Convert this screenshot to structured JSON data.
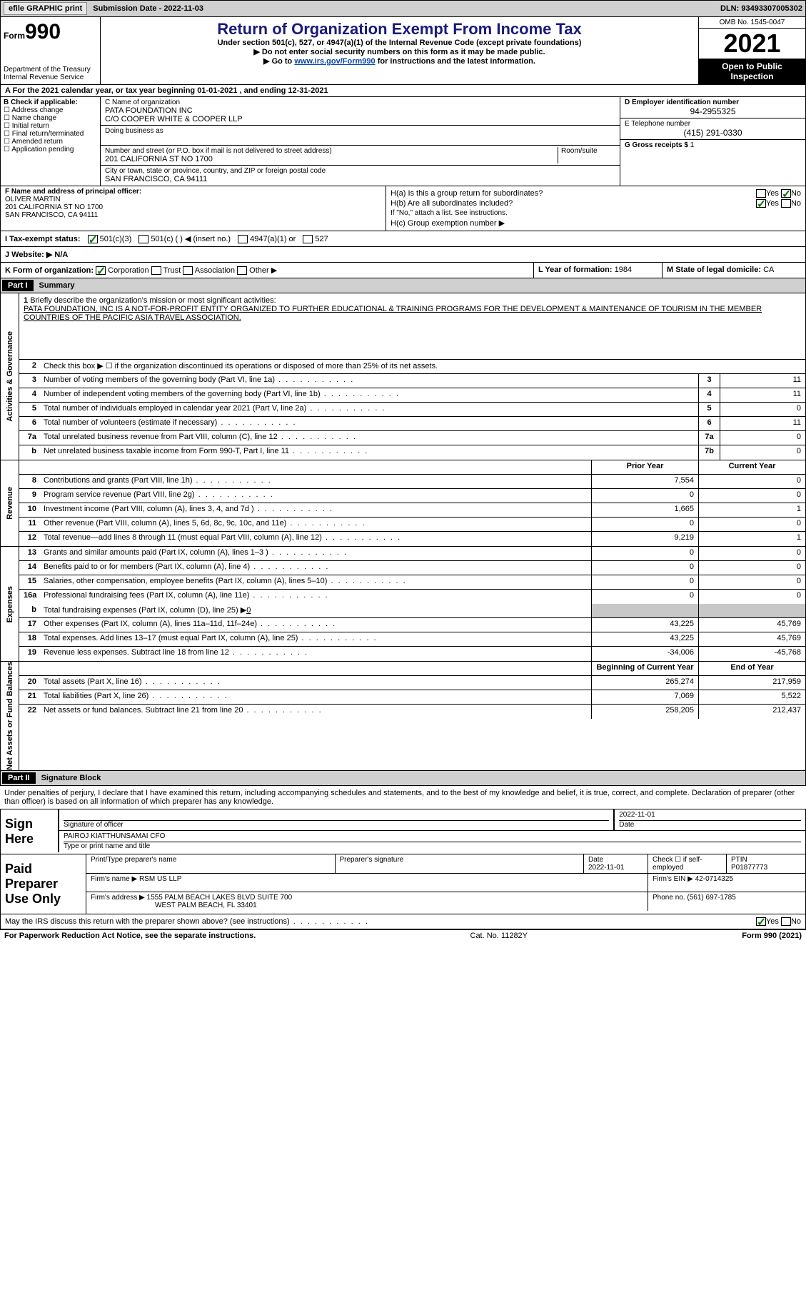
{
  "topbar": {
    "efile_btn": "efile GRAPHIC print",
    "submission_label": "Submission Date - 2022-11-03",
    "dln": "DLN: 93493307005302"
  },
  "header": {
    "form_word": "Form",
    "form_num": "990",
    "dept": "Department of the Treasury",
    "irs": "Internal Revenue Service",
    "title": "Return of Organization Exempt From Income Tax",
    "subtitle1": "Under section 501(c), 527, or 4947(a)(1) of the Internal Revenue Code (except private foundations)",
    "subtitle2": "▶ Do not enter social security numbers on this form as it may be made public.",
    "subtitle3_pre": "▶ Go to ",
    "subtitle3_link": "www.irs.gov/Form990",
    "subtitle3_post": " for instructions and the latest information.",
    "omb": "OMB No. 1545-0047",
    "year": "2021",
    "inspection": "Open to Public Inspection"
  },
  "line_a": "A For the 2021 calendar year, or tax year beginning 01-01-2021    , and ending 12-31-2021",
  "section_b": {
    "label": "B Check if applicable:",
    "opts": [
      "Address change",
      "Name change",
      "Initial return",
      "Final return/terminated",
      "Amended return",
      "Application pending"
    ]
  },
  "section_c": {
    "name_label": "C Name of organization",
    "name": "PATA FOUNDATION INC",
    "name2": "C/O COOPER WHITE & COOPER LLP",
    "dba_label": "Doing business as",
    "street_label": "Number and street (or P.O. box if mail is not delivered to street address)",
    "room_label": "Room/suite",
    "street": "201 CALIFORNIA ST NO 1700",
    "city_label": "City or town, state or province, country, and ZIP or foreign postal code",
    "city": "SAN FRANCISCO, CA  94111"
  },
  "section_d": {
    "ein_label": "D Employer identification number",
    "ein": "94-2955325",
    "phone_label": "E Telephone number",
    "phone": "(415) 291-0330",
    "gross_label": "G Gross receipts $",
    "gross": "1"
  },
  "section_f": {
    "label": "F Name and address of principal officer:",
    "name": "OLIVER MARTIN",
    "addr1": "201 CALIFORNIA ST NO 1700",
    "addr2": "SAN FRANCISCO, CA  94111"
  },
  "section_h": {
    "ha": "H(a)  Is this a group return for subordinates?",
    "hb": "H(b)  Are all subordinates included?",
    "hb_note": "If \"No,\" attach a list. See instructions.",
    "hc": "H(c)  Group exemption number ▶",
    "yes": "Yes",
    "no": "No"
  },
  "tax_status": {
    "label": "I   Tax-exempt status:",
    "opt1": "501(c)(3)",
    "opt2": "501(c) (   ) ◀ (insert no.)",
    "opt3": "4947(a)(1) or",
    "opt4": "527"
  },
  "website": {
    "label": "J   Website: ▶",
    "value": "N/A"
  },
  "line_k": {
    "label": "K Form of organization:",
    "corp": "Corporation",
    "trust": "Trust",
    "assoc": "Association",
    "other": "Other ▶"
  },
  "line_l": {
    "label": "L Year of formation:",
    "value": "1984"
  },
  "line_m": {
    "label": "M State of legal domicile:",
    "value": "CA"
  },
  "part1": {
    "header": "Part I",
    "title": "Summary",
    "tabs": {
      "ag": "Activities & Governance",
      "rev": "Revenue",
      "exp": "Expenses",
      "net": "Net Assets or Fund Balances"
    },
    "l1_label": "Briefly describe the organization's mission or most significant activities:",
    "l1_text": "PATA FOUNDATION, INC IS A NOT-FOR-PROFIT ENTITY ORGANIZED TO FURTHER EDUCATIONAL & TRAINING PROGRAMS FOR THE DEVELOPMENT & MAINTENANCE OF TOURISM IN THE MEMBER COUNTRIES OF THE PACIFIC ASIA TRAVEL ASSOCIATION.",
    "l2": "Check this box ▶ ☐  if the organization discontinued its operations or disposed of more than 25% of its net assets.",
    "lines_ag": [
      {
        "n": "3",
        "d": "Number of voting members of the governing body (Part VI, line 1a)",
        "b": "3",
        "v": "11"
      },
      {
        "n": "4",
        "d": "Number of independent voting members of the governing body (Part VI, line 1b)",
        "b": "4",
        "v": "11"
      },
      {
        "n": "5",
        "d": "Total number of individuals employed in calendar year 2021 (Part V, line 2a)",
        "b": "5",
        "v": "0"
      },
      {
        "n": "6",
        "d": "Total number of volunteers (estimate if necessary)",
        "b": "6",
        "v": "11"
      },
      {
        "n": "7a",
        "d": "Total unrelated business revenue from Part VIII, column (C), line 12",
        "b": "7a",
        "v": "0"
      },
      {
        "n": "b",
        "d": "Net unrelated business taxable income from Form 990-T, Part I, line 11",
        "b": "7b",
        "v": "0"
      }
    ],
    "col_prior": "Prior Year",
    "col_current": "Current Year",
    "lines_rev": [
      {
        "n": "8",
        "d": "Contributions and grants (Part VIII, line 1h)",
        "p": "7,554",
        "c": "0"
      },
      {
        "n": "9",
        "d": "Program service revenue (Part VIII, line 2g)",
        "p": "0",
        "c": "0"
      },
      {
        "n": "10",
        "d": "Investment income (Part VIII, column (A), lines 3, 4, and 7d )",
        "p": "1,665",
        "c": "1"
      },
      {
        "n": "11",
        "d": "Other revenue (Part VIII, column (A), lines 5, 6d, 8c, 9c, 10c, and 11e)",
        "p": "0",
        "c": "0"
      },
      {
        "n": "12",
        "d": "Total revenue—add lines 8 through 11 (must equal Part VIII, column (A), line 12)",
        "p": "9,219",
        "c": "1"
      }
    ],
    "lines_exp": [
      {
        "n": "13",
        "d": "Grants and similar amounts paid (Part IX, column (A), lines 1–3 )",
        "p": "0",
        "c": "0"
      },
      {
        "n": "14",
        "d": "Benefits paid to or for members (Part IX, column (A), line 4)",
        "p": "0",
        "c": "0"
      },
      {
        "n": "15",
        "d": "Salaries, other compensation, employee benefits (Part IX, column (A), lines 5–10)",
        "p": "0",
        "c": "0"
      },
      {
        "n": "16a",
        "d": "Professional fundraising fees (Part IX, column (A), line 11e)",
        "p": "0",
        "c": "0"
      }
    ],
    "l16b": {
      "n": "b",
      "d": "Total fundraising expenses (Part IX, column (D), line 25) ▶",
      "v": "0"
    },
    "lines_exp2": [
      {
        "n": "17",
        "d": "Other expenses (Part IX, column (A), lines 11a–11d, 11f–24e)",
        "p": "43,225",
        "c": "45,769"
      },
      {
        "n": "18",
        "d": "Total expenses. Add lines 13–17 (must equal Part IX, column (A), line 25)",
        "p": "43,225",
        "c": "45,769"
      },
      {
        "n": "19",
        "d": "Revenue less expenses. Subtract line 18 from line 12",
        "p": "-34,006",
        "c": "-45,768"
      }
    ],
    "col_begin": "Beginning of Current Year",
    "col_end": "End of Year",
    "lines_net": [
      {
        "n": "20",
        "d": "Total assets (Part X, line 16)",
        "p": "265,274",
        "c": "217,959"
      },
      {
        "n": "21",
        "d": "Total liabilities (Part X, line 26)",
        "p": "7,069",
        "c": "5,522"
      },
      {
        "n": "22",
        "d": "Net assets or fund balances. Subtract line 21 from line 20",
        "p": "258,205",
        "c": "212,437"
      }
    ]
  },
  "part2": {
    "header": "Part II",
    "title": "Signature Block",
    "decl": "Under penalties of perjury, I declare that I have examined this return, including accompanying schedules and statements, and to the best of my knowledge and belief, it is true, correct, and complete. Declaration of preparer (other than officer) is based on all information of which preparer has any knowledge.",
    "sign_here": "Sign Here",
    "sig_officer": "Signature of officer",
    "date_label": "Date",
    "sig_date": "2022-11-01",
    "officer_name": "PAIROJ KIATTHUNSAMAI  CFO",
    "name_title_label": "Type or print name and title",
    "paid_prep": "Paid Preparer Use Only",
    "prep_name_label": "Print/Type preparer's name",
    "prep_sig_label": "Preparer's signature",
    "prep_date_label": "Date",
    "prep_date": "2022-11-01",
    "self_emp": "Check ☐ if self-employed",
    "ptin_label": "PTIN",
    "ptin": "P01877773",
    "firm_name_label": "Firm's name    ▶",
    "firm_name": "RSM US LLP",
    "firm_ein_label": "Firm's EIN ▶",
    "firm_ein": "42-0714325",
    "firm_addr_label": "Firm's address ▶",
    "firm_addr": "1555 PALM BEACH LAKES BLVD SUITE 700",
    "firm_addr2": "WEST PALM BEACH, FL  33401",
    "firm_phone_label": "Phone no.",
    "firm_phone": "(561) 697-1785",
    "discuss": "May the IRS discuss this return with the preparer shown above? (see instructions)"
  },
  "footer": {
    "left": "For Paperwork Reduction Act Notice, see the separate instructions.",
    "mid": "Cat. No. 11282Y",
    "right": "Form 990 (2021)"
  }
}
